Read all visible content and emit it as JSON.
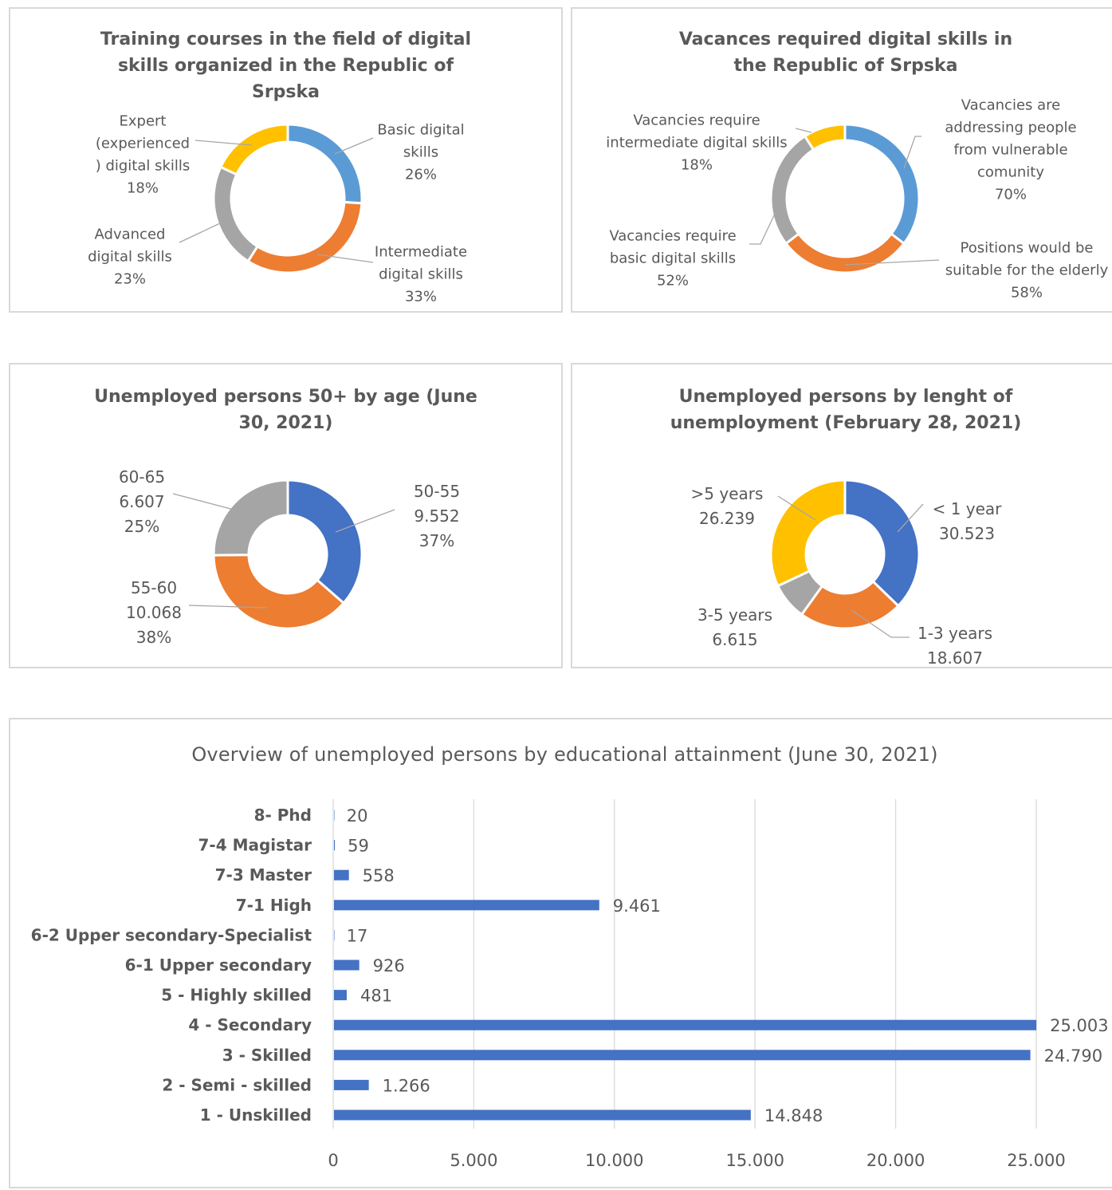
{
  "chart_data": [
    {
      "type": "pie",
      "title": "Training courses in the field of digital skills organized in the Republic of Srpska",
      "slices": [
        {
          "name": "Basic digital skills",
          "label_lines": [
            "Basic digital",
            "skills"
          ],
          "pct_label": "26%",
          "value": 26,
          "color": "#5B9BD5"
        },
        {
          "name": "Intermediate digital skills",
          "label_lines": [
            "Intermediate",
            "digital skills"
          ],
          "pct_label": "33%",
          "value": 33,
          "color": "#ED7D31"
        },
        {
          "name": "Advanced digital skills",
          "label_lines": [
            "Advanced",
            "digital skills"
          ],
          "pct_label": "23%",
          "value": 23,
          "color": "#A5A5A5"
        },
        {
          "name": "Expert (experienced ) digital skills",
          "label_lines": [
            "Expert",
            "(experienced",
            ") digital skills"
          ],
          "pct_label": "18%",
          "value": 18,
          "color": "#FFC000"
        }
      ]
    },
    {
      "type": "pie",
      "title": "Vacances required digital skills in the Republic of Srpska",
      "slices": [
        {
          "name": "Vacancies are addressing people from vulnerable comunity",
          "label_lines": [
            "Vacancies are",
            "addressing  people",
            "from vulnerable",
            "comunity"
          ],
          "pct_label": "70%",
          "value": 70,
          "color": "#5B9BD5"
        },
        {
          "name": "Positions would be suitable for the elderly",
          "label_lines": [
            "Positions would be",
            "suitable for the elderly"
          ],
          "pct_label": "58%",
          "value": 58,
          "color": "#ED7D31"
        },
        {
          "name": "Vacancies require basic digital skills",
          "label_lines": [
            "Vacancies require",
            "basic digital skills"
          ],
          "pct_label": "52%",
          "value": 52,
          "color": "#A5A5A5"
        },
        {
          "name": "Vacancies require intermediate digital skills",
          "label_lines": [
            "Vacancies require",
            "intermediate digital skills"
          ],
          "pct_label": "18%",
          "value": 18,
          "color": "#FFC000"
        }
      ]
    },
    {
      "type": "pie",
      "title": "Unemployed persons 50+ by age (June 30, 2021)",
      "slices": [
        {
          "name": "50-55",
          "label_lines": [
            "50-55",
            "9.552"
          ],
          "pct_label": "37%",
          "value": 9552,
          "color": "#4472C4"
        },
        {
          "name": "55-60",
          "label_lines": [
            "55-60",
            "10.068"
          ],
          "pct_label": "38%",
          "value": 10068,
          "color": "#ED7D31"
        },
        {
          "name": "60-65",
          "label_lines": [
            "60-65",
            "6.607"
          ],
          "pct_label": "25%",
          "value": 6607,
          "color": "#A5A5A5"
        }
      ]
    },
    {
      "type": "pie",
      "title": "Unemployed persons by lenght of unemployment (February 28, 2021)",
      "slices": [
        {
          "name": "< 1 year",
          "label_lines": [
            "< 1 year",
            "30.523"
          ],
          "pct_label": "",
          "value": 30523,
          "color": "#4472C4"
        },
        {
          "name": "1-3 years",
          "label_lines": [
            "1-3 years",
            "18.607"
          ],
          "pct_label": "",
          "value": 18607,
          "color": "#ED7D31"
        },
        {
          "name": "3-5 years",
          "label_lines": [
            "3-5 years",
            "6.615"
          ],
          "pct_label": "",
          "value": 6615,
          "color": "#A5A5A5"
        },
        {
          "name": ">5 years",
          "label_lines": [
            ">5 years",
            "26.239"
          ],
          "pct_label": "",
          "value": 26239,
          "color": "#FFC000"
        }
      ]
    },
    {
      "type": "bar",
      "orientation": "horizontal",
      "title": "Overview of unemployed persons by educational attainment (June 30, 2021)",
      "categories": [
        "8- Phd",
        "7-4 Magistar",
        "7-3 Master",
        "7-1 High",
        "6-2 Upper secondary-Specialist",
        "6-1 Upper secondary",
        "5 - Highly skilled",
        "4 - Secondary",
        "3 - Skilled",
        "2 - Semi - skilled",
        "1 - Unskilled"
      ],
      "values": [
        20,
        59,
        558,
        9461,
        17,
        926,
        481,
        25003,
        24790,
        1266,
        14848
      ],
      "value_labels": [
        "20",
        "59",
        "558",
        "9.461",
        "17",
        "926",
        "481",
        "25.003",
        "24.790",
        "1.266",
        "14.848"
      ],
      "xlim": [
        0,
        25000
      ],
      "xticks": [
        0,
        5000,
        10000,
        15000,
        20000,
        25000
      ],
      "xtick_labels": [
        "0",
        "5.000",
        "10.000",
        "15.000",
        "20.000",
        "25.000"
      ],
      "bar_color": "#4472C4",
      "grid": "vertical",
      "xlabel": "",
      "ylabel": ""
    }
  ]
}
